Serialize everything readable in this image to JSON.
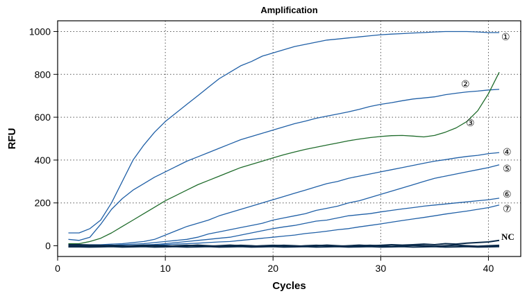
{
  "chart_data": {
    "type": "line",
    "title": "Amplification",
    "xlabel": "Cycles",
    "ylabel": "RFU",
    "xlim": [
      0,
      43
    ],
    "ylim": [
      -50,
      1050
    ],
    "xticks": [
      0,
      10,
      20,
      30,
      40
    ],
    "yticks": [
      0,
      200,
      400,
      600,
      800,
      1000
    ],
    "grid": true,
    "colors": {
      "blue": "#1f5fa6",
      "green": "#1e6b2a",
      "dark": "#0a2a4a"
    },
    "x": [
      1,
      2,
      3,
      4,
      5,
      6,
      7,
      8,
      9,
      10,
      11,
      12,
      13,
      14,
      15,
      16,
      17,
      18,
      19,
      20,
      21,
      22,
      23,
      24,
      25,
      26,
      27,
      28,
      29,
      30,
      31,
      32,
      33,
      34,
      35,
      36,
      37,
      38,
      39,
      40,
      41
    ],
    "series": [
      {
        "name": "1",
        "label": "①",
        "color": "blue",
        "values": [
          60,
          60,
          80,
          120,
          200,
          300,
          400,
          470,
          530,
          580,
          620,
          660,
          700,
          740,
          780,
          810,
          840,
          860,
          885,
          900,
          915,
          930,
          940,
          950,
          960,
          965,
          970,
          975,
          980,
          985,
          988,
          990,
          993,
          995,
          998,
          1000,
          1000,
          1000,
          998,
          995,
          995
        ]
      },
      {
        "name": "2",
        "label": "②",
        "color": "blue",
        "values": [
          30,
          25,
          40,
          100,
          170,
          220,
          260,
          290,
          320,
          345,
          370,
          395,
          415,
          435,
          455,
          475,
          495,
          510,
          525,
          540,
          555,
          570,
          582,
          595,
          605,
          615,
          625,
          637,
          650,
          660,
          668,
          677,
          685,
          690,
          695,
          705,
          712,
          718,
          722,
          727,
          730
        ]
      },
      {
        "name": "3",
        "label": "③",
        "color": "green",
        "values": [
          10,
          10,
          20,
          35,
          60,
          90,
          120,
          150,
          180,
          210,
          235,
          260,
          285,
          305,
          325,
          345,
          365,
          380,
          395,
          410,
          425,
          438,
          450,
          460,
          470,
          480,
          490,
          498,
          505,
          510,
          514,
          515,
          512,
          508,
          515,
          530,
          550,
          580,
          630,
          710,
          810
        ]
      },
      {
        "name": "4",
        "label": "④",
        "color": "blue",
        "values": [
          5,
          5,
          5,
          5,
          8,
          10,
          15,
          20,
          30,
          50,
          70,
          90,
          105,
          120,
          140,
          155,
          170,
          185,
          200,
          215,
          230,
          245,
          260,
          275,
          290,
          300,
          315,
          325,
          335,
          345,
          355,
          365,
          375,
          385,
          395,
          402,
          410,
          417,
          422,
          430,
          435
        ]
      },
      {
        "name": "5",
        "label": "⑤",
        "color": "blue",
        "values": [
          0,
          0,
          0,
          0,
          2,
          5,
          8,
          10,
          15,
          20,
          25,
          30,
          40,
          55,
          65,
          75,
          85,
          95,
          105,
          120,
          130,
          140,
          150,
          165,
          175,
          185,
          200,
          210,
          225,
          240,
          255,
          270,
          285,
          300,
          315,
          325,
          335,
          345,
          355,
          365,
          378
        ]
      },
      {
        "name": "6",
        "label": "⑥",
        "color": "blue",
        "values": [
          0,
          0,
          0,
          0,
          0,
          0,
          2,
          4,
          6,
          10,
          15,
          20,
          25,
          30,
          35,
          40,
          50,
          60,
          70,
          80,
          88,
          95,
          105,
          115,
          120,
          130,
          140,
          145,
          150,
          158,
          165,
          172,
          178,
          185,
          190,
          195,
          200,
          205,
          210,
          215,
          222
        ]
      },
      {
        "name": "7",
        "label": "⑦",
        "color": "blue",
        "values": [
          0,
          0,
          0,
          0,
          0,
          0,
          0,
          0,
          2,
          5,
          8,
          10,
          12,
          15,
          18,
          20,
          25,
          30,
          35,
          40,
          45,
          50,
          57,
          62,
          68,
          75,
          80,
          88,
          95,
          102,
          110,
          118,
          125,
          132,
          140,
          148,
          155,
          162,
          170,
          178,
          190
        ]
      },
      {
        "name": "NC",
        "label": "NC",
        "color": "dark",
        "values": [
          5,
          5,
          3,
          2,
          0,
          -2,
          0,
          2,
          0,
          -3,
          0,
          2,
          0,
          -2,
          0,
          3,
          0,
          -2,
          0,
          2,
          0,
          -3,
          0,
          2,
          0,
          -2,
          0,
          3,
          0,
          2,
          5,
          3,
          5,
          8,
          5,
          10,
          8,
          12,
          15,
          18,
          25
        ]
      },
      {
        "name": "NC-b",
        "label": "",
        "color": "dark",
        "values": [
          0,
          0,
          -2,
          0,
          2,
          0,
          -3,
          0,
          2,
          0,
          -2,
          0,
          3,
          0,
          -2,
          0,
          2,
          0,
          -3,
          0,
          2,
          0,
          -2,
          0,
          3,
          0,
          -2,
          0,
          2,
          0,
          -3,
          0,
          2,
          0,
          -2,
          0,
          3,
          0,
          -2,
          0,
          2
        ]
      },
      {
        "name": "NC-c",
        "label": "",
        "color": "dark",
        "values": [
          -5,
          -5,
          -6,
          -5,
          -4,
          -6,
          -5,
          -4,
          -6,
          -5,
          -4,
          -6,
          -5,
          -4,
          -6,
          -5,
          -4,
          -6,
          -5,
          -4,
          -6,
          -5,
          -4,
          -6,
          -5,
          -4,
          -6,
          -5,
          -4,
          -6,
          -5,
          -4,
          -6,
          -5,
          -4,
          -6,
          -5,
          -4,
          -6,
          -5,
          -4
        ]
      }
    ]
  }
}
